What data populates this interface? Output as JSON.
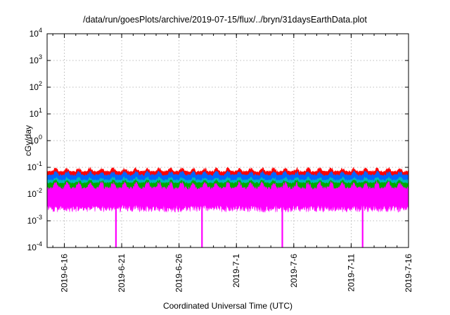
{
  "chart_data": {
    "type": "line",
    "title": "/data/run/goesPlots/archive/2019-07-15/flux/../bryn/31daysEarthData.plot",
    "xlabel": "Coordinated Universal Time (UTC)",
    "ylabel": "cGy/day",
    "yscale": "log",
    "ylim": [
      0.0001,
      10000
    ],
    "y_ticks": [
      {
        "base": "10",
        "exp": "-4",
        "value": 0.0001
      },
      {
        "base": "10",
        "exp": "-3",
        "value": 0.001
      },
      {
        "base": "10",
        "exp": "-2",
        "value": 0.01
      },
      {
        "base": "10",
        "exp": "-1",
        "value": 0.1
      },
      {
        "base": "10",
        "exp": "0",
        "value": 1
      },
      {
        "base": "10",
        "exp": "1",
        "value": 10
      },
      {
        "base": "10",
        "exp": "2",
        "value": 100
      },
      {
        "base": "10",
        "exp": "3",
        "value": 1000
      },
      {
        "base": "10",
        "exp": "4",
        "value": 10000
      }
    ],
    "xlim": [
      "2019-06-14T12:00",
      "2019-07-16T00:00"
    ],
    "x_ticks": [
      "2019-6-16",
      "2019-6-21",
      "2019-6-26",
      "2019-7-1",
      "2019-7-6",
      "2019-7-11",
      "2019-7-16"
    ],
    "grid": true,
    "series": [
      {
        "color": "#ff0000",
        "baseline": 0.05,
        "peak": 0.1
      },
      {
        "color": "#0066ff",
        "baseline": 0.035,
        "peak": 0.075
      },
      {
        "color": "#00bbbb",
        "baseline": 0.025,
        "peak": 0.045
      },
      {
        "color": "#00aa00",
        "baseline": 0.02,
        "peak": 0.035
      },
      {
        "color": "#ff00ff",
        "baseline": 0.008,
        "peak": 0.03,
        "floor": 0.003
      }
    ],
    "dips": [
      {
        "date": "2019-06-20T12:00",
        "value": 0.0001
      },
      {
        "date": "2019-06-28T00:00",
        "value": 0.0001
      },
      {
        "date": "2019-07-05T00:00",
        "value": 0.0001
      },
      {
        "date": "2019-07-12T00:00",
        "value": 0.0001
      }
    ]
  }
}
